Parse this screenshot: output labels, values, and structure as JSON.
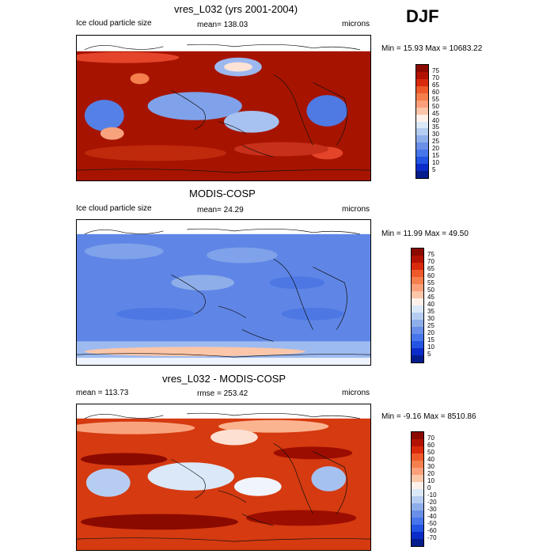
{
  "season": "DJF",
  "panels": [
    {
      "title": "vres_L032 (yrs 2001-2004)",
      "left_label": "Ice cloud particle size",
      "center_label": "mean= 138.03",
      "right_label": "microns",
      "minmax": "Min =  15.93 Max = 10683.22",
      "colorbar_labels": [
        "75",
        "70",
        "65",
        "60",
        "55",
        "50",
        "45",
        "40",
        "35",
        "30",
        "25",
        "20",
        "15",
        "10",
        "5"
      ]
    },
    {
      "title": "MODIS-COSP",
      "left_label": "Ice cloud particle size",
      "center_label": "mean=  24.29",
      "right_label": "microns",
      "minmax": "Min =  11.99 Max =  49.50",
      "colorbar_labels": [
        "75",
        "70",
        "65",
        "60",
        "55",
        "50",
        "45",
        "40",
        "35",
        "30",
        "25",
        "20",
        "15",
        "10",
        "5"
      ]
    },
    {
      "title": "vres_L032 - MODIS-COSP",
      "left_label": "mean = 113.73",
      "center_label": "rmse = 253.42",
      "right_label": "microns",
      "minmax": "Min =  -9.16 Max = 8510.86",
      "colorbar_labels": [
        "70",
        "60",
        "50",
        "40",
        "30",
        "20",
        "10",
        "0",
        "-10",
        "-20",
        "-30",
        "-40",
        "-50",
        "-60",
        "-70"
      ]
    }
  ],
  "colors": {
    "scale": [
      "#8b0a00",
      "#b31200",
      "#d92a0b",
      "#ee5a2a",
      "#f57f4d",
      "#fba07a",
      "#fcc6a9",
      "#fff1ea",
      "#dbe8f8",
      "#b6cdf1",
      "#8eaeea",
      "#6a8fe8",
      "#4776ec",
      "#2354e3",
      "#0b2cc9",
      "#041c8c"
    ]
  }
}
